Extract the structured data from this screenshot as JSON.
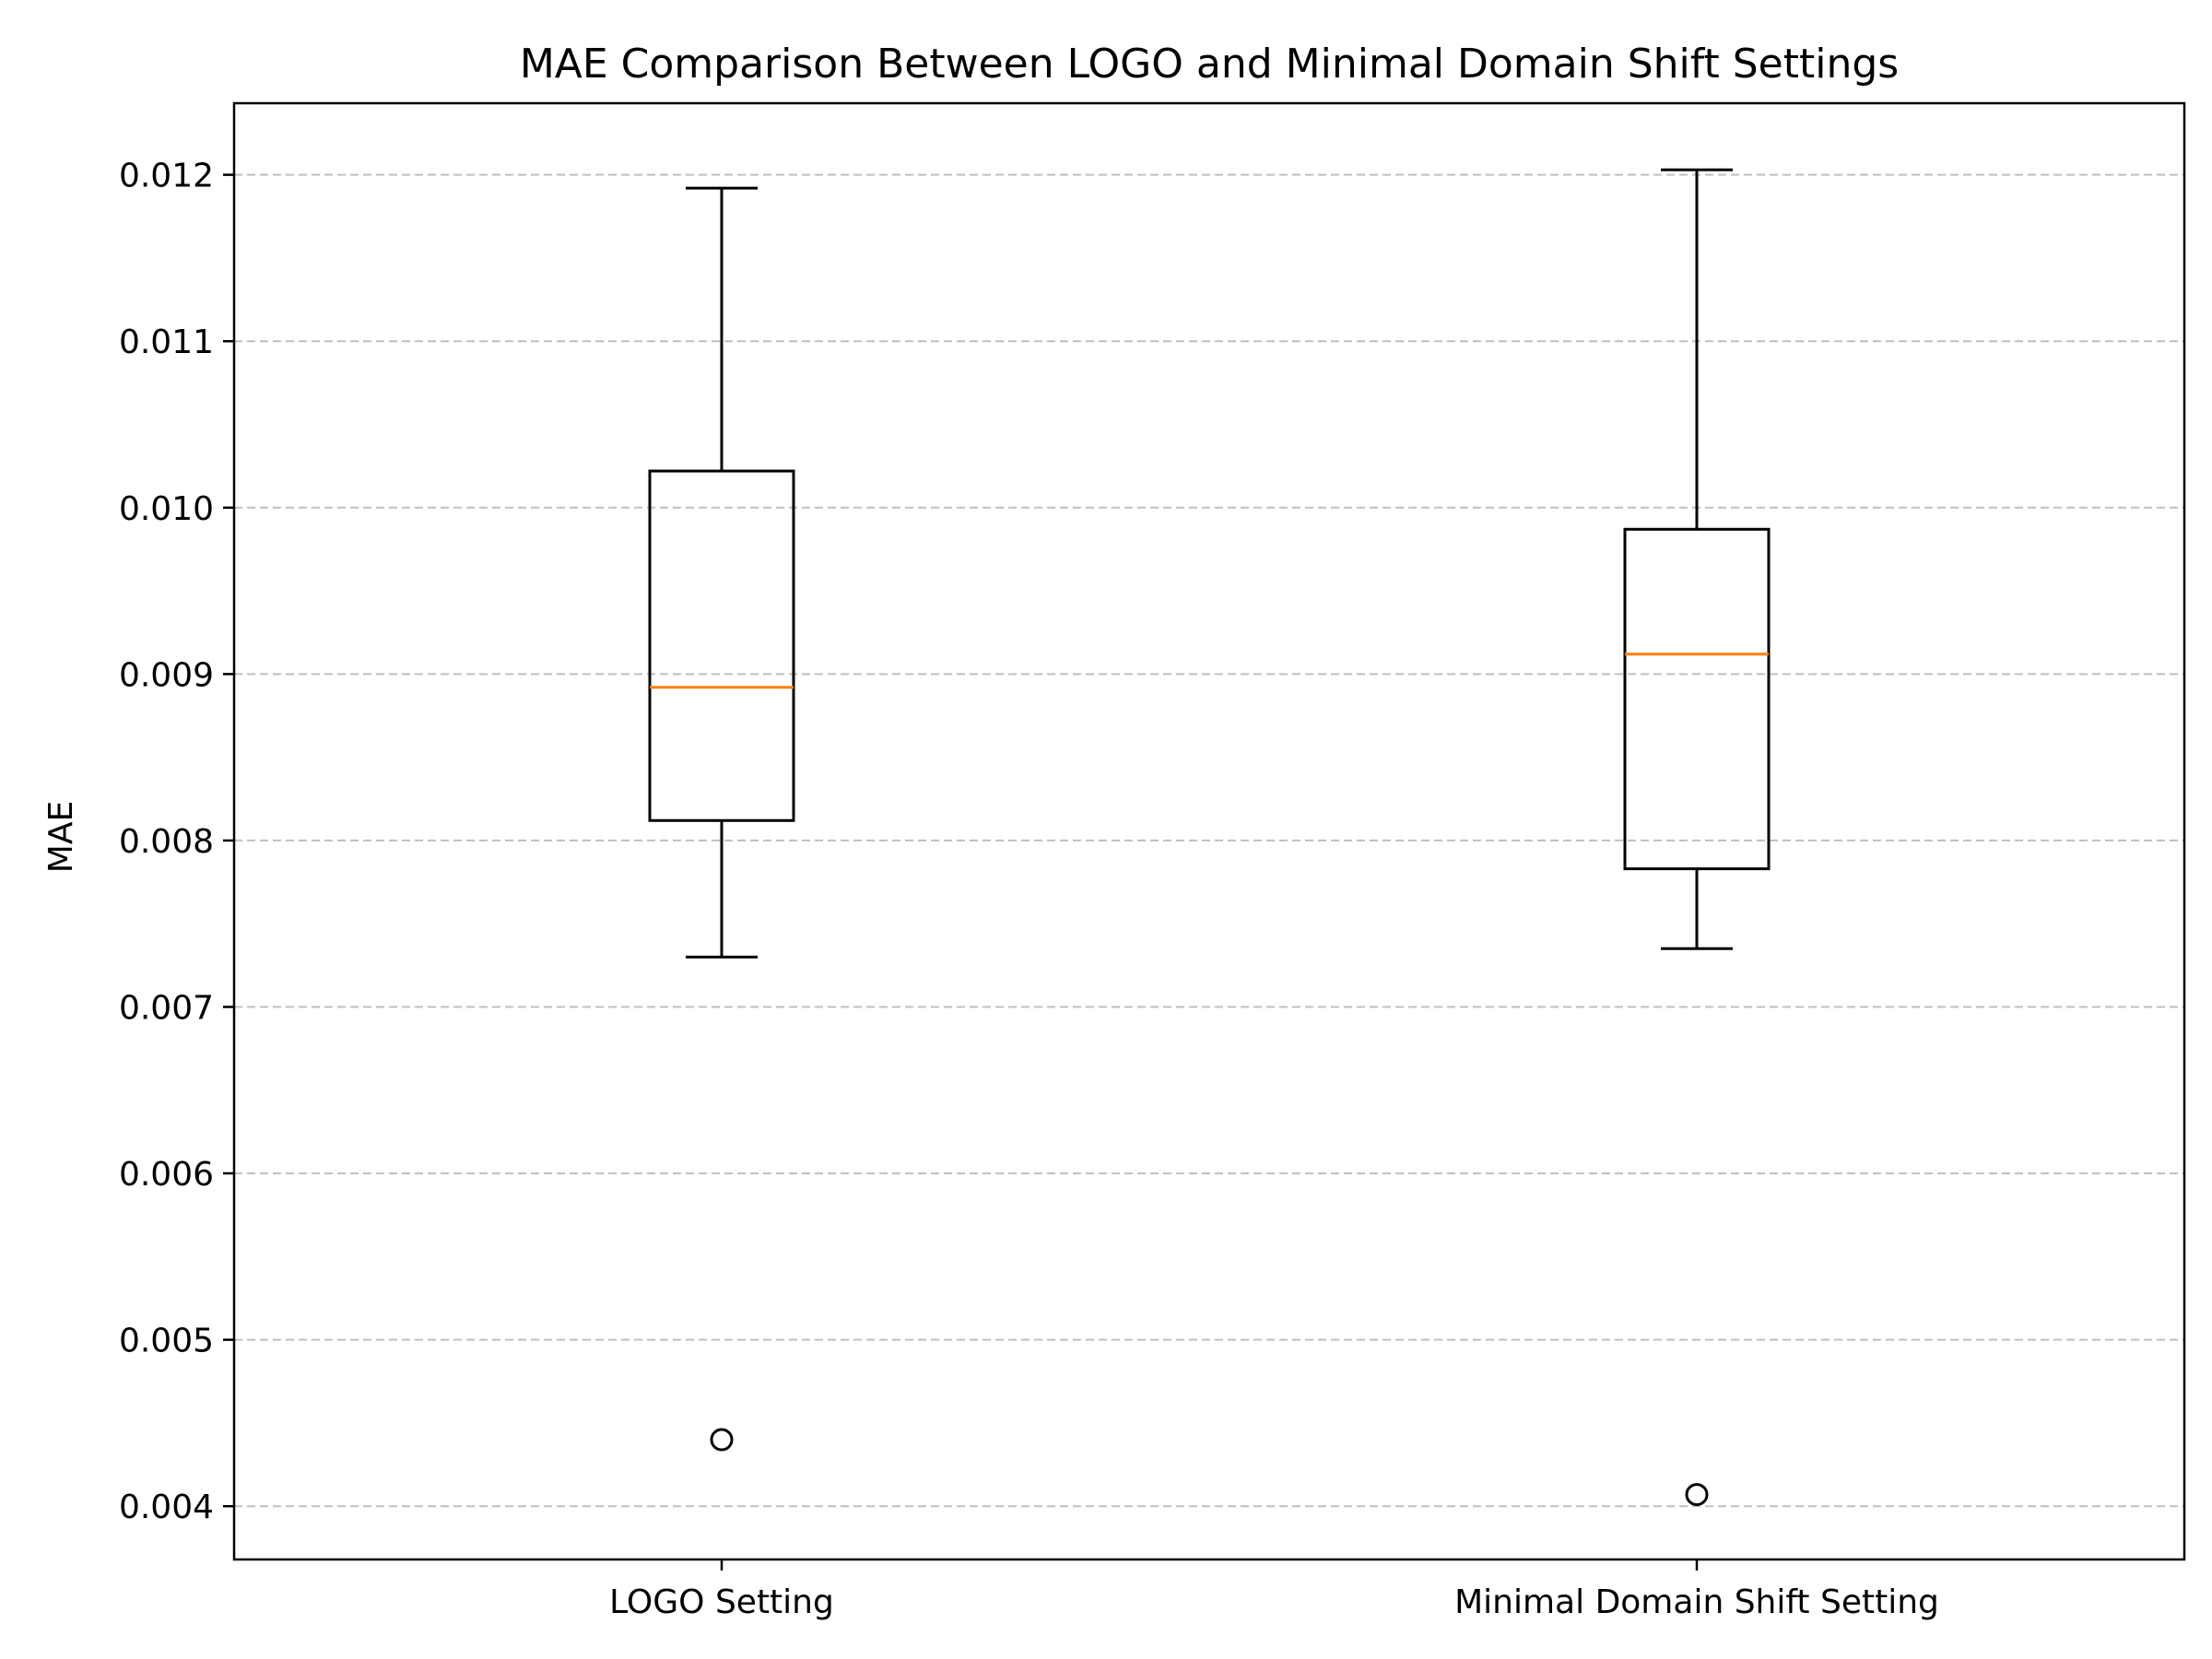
{
  "chart_data": {
    "type": "boxplot",
    "title": "MAE Comparison Between LOGO and Minimal Domain Shift Settings",
    "xlabel": "",
    "ylabel": "MAE",
    "ylim": [
      0.00368,
      0.01243
    ],
    "yticks": [
      0.004,
      0.005,
      0.006,
      0.007,
      0.008,
      0.009,
      0.01,
      0.011,
      0.012
    ],
    "ytick_labels": [
      "0.004",
      "0.005",
      "0.006",
      "0.007",
      "0.008",
      "0.009",
      "0.010",
      "0.011",
      "0.012"
    ],
    "grid": "y-dashed",
    "colors": {
      "box": "#000000",
      "median": "#ff7f0e",
      "grid": "#b0b0b0"
    },
    "categories": [
      "LOGO Setting",
      "Minimal Domain Shift Setting"
    ],
    "boxes": [
      {
        "label": "LOGO Setting",
        "whisker_low": 0.0073,
        "q1": 0.00812,
        "median": 0.00892,
        "q3": 0.01022,
        "whisker_high": 0.01192,
        "fliers": [
          0.0044
        ]
      },
      {
        "label": "Minimal Domain Shift Setting",
        "whisker_low": 0.00735,
        "q1": 0.00783,
        "median": 0.00912,
        "q3": 0.00987,
        "whisker_high": 0.01203,
        "fliers": [
          0.00407
        ]
      }
    ]
  }
}
